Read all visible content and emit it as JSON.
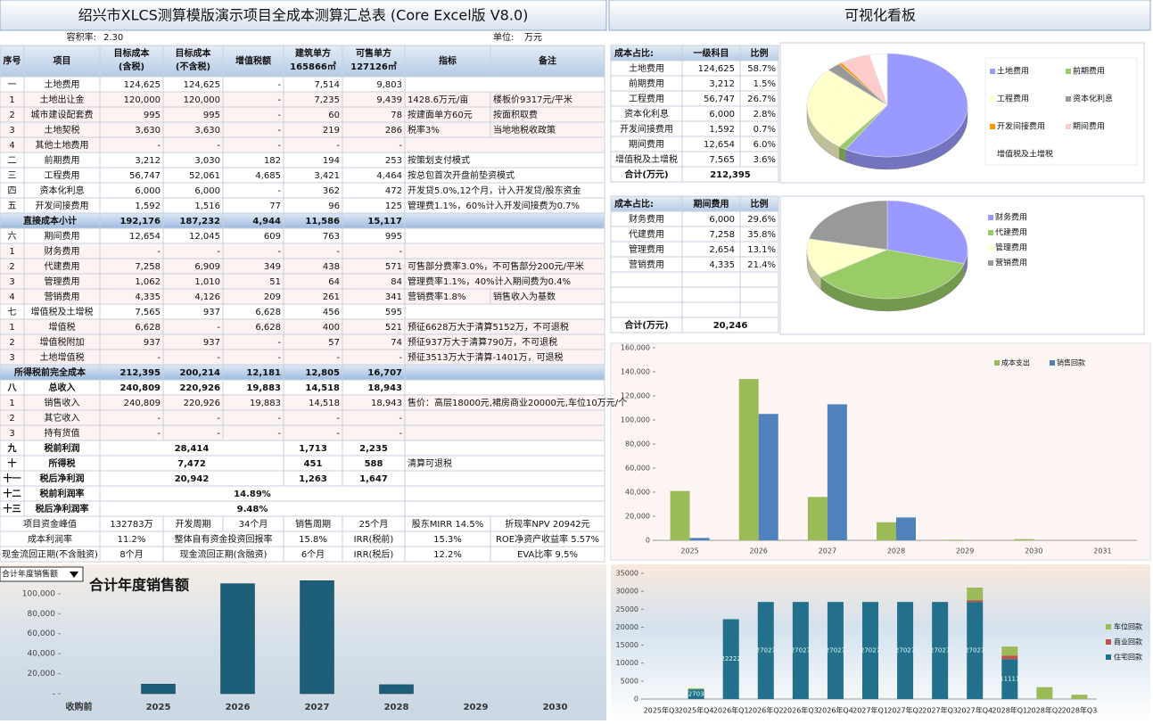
{
  "sheet": {
    "title": "绍兴市XLCS测算模版演示项目全成本测算汇总表 (Core Excel版 V8.0)",
    "plot_ratio_label": "容积率:",
    "plot_ratio": "2.30",
    "unit_label": "单位:",
    "unit": "万元",
    "headers": [
      [
        "序号"
      ],
      [
        "项目"
      ],
      [
        "目标成本",
        "(含税)"
      ],
      [
        "目标成本",
        "(不含税)"
      ],
      [
        "增值税额"
      ],
      [
        "建筑单方",
        "165866㎡"
      ],
      [
        "可售单方",
        "127126㎡"
      ],
      [
        "指标"
      ],
      [
        "备注"
      ]
    ],
    "rows": [
      {
        "no": "一",
        "item": "土地费用",
        "v": [
          "124,625",
          "124,625",
          "-",
          "7,514",
          "9,803"
        ]
      },
      {
        "no": "1",
        "item": "土地出让金",
        "v": [
          "120,000",
          "120,000",
          "-",
          "7,235",
          "9,439"
        ],
        "note": "1428.6万元/亩",
        "remark": "楼板价9317元/平米"
      },
      {
        "no": "2",
        "item": "城市建设配套费",
        "v": [
          "995",
          "995",
          "-",
          "60",
          "78"
        ],
        "note": "按建面单方60元",
        "remark": "按面积取费"
      },
      {
        "no": "3",
        "item": "土地契税",
        "v": [
          "3,630",
          "3,630",
          "-",
          "219",
          "286"
        ],
        "note": "税率3%",
        "remark": "当地地税收政策"
      },
      {
        "no": "4",
        "item": "其他土地费用",
        "v": [
          "-",
          "-",
          "-",
          "-",
          "-"
        ]
      },
      {
        "no": "二",
        "item": "前期费用",
        "v": [
          "3,212",
          "3,030",
          "182",
          "194",
          "253"
        ],
        "note": "按策划支付模式"
      },
      {
        "no": "三",
        "item": "工程费用",
        "v": [
          "56,747",
          "52,061",
          "4,685",
          "3,421",
          "4,464"
        ],
        "note": "按总包首次开盘前垫资模式"
      },
      {
        "no": "四",
        "item": "资本化利息",
        "v": [
          "6,000",
          "6,000",
          "-",
          "362",
          "472"
        ],
        "note": "开发贷5.0%,12个月，计入开发贷/股东资金"
      },
      {
        "no": "五",
        "item": "开发间接费用",
        "v": [
          "1,592",
          "1,516",
          "77",
          "96",
          "125"
        ],
        "note": "管理费1.1%，60%计入开发间接费为0.7%"
      },
      {
        "item": "直接成本小计",
        "v": [
          "192,176",
          "187,232",
          "4,944",
          "11,586",
          "15,117"
        ],
        "highlight": true
      },
      {
        "no": "六",
        "item": "期间费用",
        "v": [
          "12,654",
          "12,045",
          "609",
          "763",
          "995"
        ]
      },
      {
        "no": "1",
        "item": "财务费用",
        "v": [
          "-",
          "-",
          "-",
          "-",
          "-"
        ]
      },
      {
        "no": "2",
        "item": "代建费用",
        "v": [
          "7,258",
          "6,909",
          "349",
          "438",
          "571"
        ],
        "note": "可售部分费率3.0%，不可售部分200元/平米"
      },
      {
        "no": "3",
        "item": "管理费用",
        "v": [
          "1,062",
          "1,010",
          "51",
          "64",
          "84"
        ],
        "note": "管理费率1.1%，40%计入期间费为0.4%"
      },
      {
        "no": "4",
        "item": "营销费用",
        "v": [
          "4,335",
          "4,126",
          "209",
          "261",
          "341"
        ],
        "note": "营销费率1.8%",
        "remark": "销售收入为基数"
      },
      {
        "no": "七",
        "item": "增值税及土增税",
        "v": [
          "7,565",
          "937",
          "6,628",
          "456",
          "595"
        ]
      },
      {
        "no": "1",
        "item": "增值税",
        "v": [
          "6,628",
          "-",
          "6,628",
          "400",
          "521"
        ],
        "note": "预征6628万大于清算5152万，不可退税"
      },
      {
        "no": "2",
        "item": "增值税附加",
        "v": [
          "937",
          "937",
          "-",
          "57",
          "74"
        ],
        "note": "预征937万大于清算790万，不可退税"
      },
      {
        "no": "3",
        "item": "土地增值税",
        "v": [
          "-",
          "-",
          "-",
          "-",
          "-"
        ],
        "note": "预征3513万大于清算-1401万，可退税"
      },
      {
        "item": "所得税前完全成本",
        "v": [
          "212,395",
          "200,214",
          "12,181",
          "12,805",
          "16,707"
        ],
        "highlight": true
      },
      {
        "no": "八",
        "item": "总收入",
        "v": [
          "240,809",
          "220,926",
          "19,883",
          "14,518",
          "18,943"
        ],
        "bold": true
      },
      {
        "no": "1",
        "item": "销售收入",
        "v": [
          "240,809",
          "220,926",
          "19,883",
          "14,518",
          "18,943"
        ],
        "note": "售价：高层18000元,裙房商业20000元,车位10万元/个"
      },
      {
        "no": "2",
        "item": "其它收入",
        "v": [
          "-",
          "-",
          "-",
          "-",
          "-"
        ]
      },
      {
        "no": "3",
        "item": "持有货值",
        "v": [
          "-",
          "-",
          "-",
          "-",
          "-"
        ]
      },
      {
        "no": "九",
        "item": "税前利润",
        "merged": "28,414",
        "v": [
          "1,713",
          "2,235"
        ]
      },
      {
        "no": "十",
        "item": "所得税",
        "merged": "7,472",
        "v": [
          "451",
          "588"
        ],
        "note": "清算可退税"
      },
      {
        "no": "十一",
        "item": "税后净利润",
        "merged": "20,942",
        "v": [
          "1,263",
          "1,647"
        ]
      },
      {
        "no": "十二",
        "item": "税前利润率",
        "merged": "14.89%"
      },
      {
        "no": "十三",
        "item": "税后净利润率",
        "merged": "9.48%"
      }
    ],
    "kpi": [
      [
        "项目资金峰值",
        "132783万",
        "开发周期",
        "34个月",
        "销售周期",
        "25个月",
        "股东MIRR 14.5%",
        "折现率NPV 20942元"
      ],
      [
        "成本利润率",
        "11.2%",
        "整体自有资金投资回报率",
        "15.8%",
        "IRR(税前)",
        "15.3%",
        "ROE净资产收益率 5.57%"
      ],
      [
        "现金流回正期(不含融资)",
        "8个月",
        "现金流回正期(含融资)",
        "6个月",
        "IRR(税后)",
        "12.2%",
        "EVA比率 9.5%"
      ]
    ]
  },
  "dashboard": {
    "title": "可视化看板",
    "table1": {
      "header": [
        "成本占比:",
        "一级科目",
        "比例"
      ],
      "amounts": [
        "124,625",
        "3,212",
        "56,747",
        "6,000",
        "1,592",
        "12,654",
        "7,565"
      ],
      "total_label": "合计(万元)",
      "total": "212,395"
    },
    "table2": {
      "header": [
        "成本占比:",
        "期间费用",
        "比例"
      ],
      "amounts": [
        "6,000",
        "7,258",
        "2,654",
        "4,335"
      ],
      "total_label": "合计(万元)",
      "total": "20,246"
    }
  },
  "chart_data": [
    {
      "type": "bar",
      "title": "合计年度销售额",
      "dropdown": "合计年度销售额",
      "categories": [
        "收购前",
        "2025",
        "2026",
        "2027",
        "2028",
        "2029",
        "2030"
      ],
      "values": [
        0,
        9500,
        110000,
        113000,
        9000,
        0,
        0
      ],
      "color": "#1d5f78",
      "ylim": [
        0,
        115000
      ],
      "yticks": [
        {
          "value": 0,
          "label": "-"
        },
        {
          "value": 20000,
          "label": "20,000"
        },
        {
          "value": 40000,
          "label": "40,000"
        },
        {
          "value": 60000,
          "label": "60,000"
        },
        {
          "value": 80000,
          "label": "80,000"
        },
        {
          "value": 100000,
          "label": "100,000"
        }
      ],
      "grid": false
    },
    {
      "type": "pie",
      "categories": [
        "土地费用",
        "前期费用",
        "工程费用",
        "资本化利息",
        "开发间接费用",
        "期间费用",
        "增值税及土增税"
      ],
      "values": [
        58.7,
        1.5,
        26.7,
        2.8,
        0.7,
        6.0,
        3.6
      ],
      "value_labels": [
        "58.7%",
        "1.5%",
        "26.7%",
        "2.8%",
        "0.7%",
        "6.0%",
        "3.6%"
      ],
      "colors": [
        "#9999ff",
        "#99cc66",
        "#ffffcc",
        "#999999",
        "#ff9900",
        "#ffcccc",
        "#ffffff"
      ]
    },
    {
      "type": "pie",
      "categories": [
        "财务费用",
        "代建费用",
        "管理费用",
        "营销费用"
      ],
      "values": [
        29.6,
        35.8,
        13.1,
        21.4
      ],
      "value_labels": [
        "29.6%",
        "35.8%",
        "13.1%",
        "21.4%"
      ],
      "colors": [
        "#9999ff",
        "#99cc66",
        "#ffffcc",
        "#999999"
      ]
    },
    {
      "type": "grouped_bar",
      "categories": [
        "2025",
        "2026",
        "2027",
        "2028",
        "2029",
        "2030",
        "2031"
      ],
      "series": [
        {
          "name": "成本支出",
          "color": "#9bbb59",
          "values": [
            41000,
            134000,
            36000,
            15000,
            500,
            1000,
            0
          ]
        },
        {
          "name": "销售回款",
          "color": "#4f81bd",
          "values": [
            2000,
            105000,
            113000,
            19000,
            0,
            0,
            0
          ]
        }
      ],
      "ylim": [
        0,
        160000
      ],
      "yticks": [
        0,
        {
          "value": 20000,
          "label": "20,000"
        },
        {
          "value": 40000,
          "label": "40,000"
        },
        {
          "value": 60000,
          "label": "60,000"
        },
        {
          "value": 80000,
          "label": "80,000"
        },
        {
          "value": 100000,
          "label": "100,000"
        },
        {
          "value": 120000,
          "label": "120,000"
        },
        {
          "value": 140000,
          "label": "140,000"
        },
        {
          "value": 160000,
          "label": "160,000"
        }
      ],
      "legend": "top",
      "grid": false
    },
    {
      "type": "stacked_bar",
      "categories": [
        "2025年Q3",
        "2025年Q4",
        "2026年Q1",
        "2026年Q2",
        "2026年Q3",
        "2026年Q4",
        "2027年Q1",
        "2027年Q2",
        "2027年Q3",
        "2027年Q4",
        "2028年Q1",
        "2028年Q2",
        "2028年Q3"
      ],
      "series": [
        {
          "name": "住宅回款",
          "color": "#23708c",
          "values": [
            0,
            2703,
            22222,
            27027,
            27027,
            27027,
            27027,
            27027,
            27027,
            27027,
            11111,
            0,
            0
          ]
        },
        {
          "name": "商业回款",
          "color": "#c0504d",
          "values": [
            0,
            0,
            0,
            0,
            0,
            0,
            0,
            0,
            0,
            500,
            1000,
            0,
            0
          ]
        },
        {
          "name": "车位回款",
          "color": "#9bbb59",
          "values": [
            0,
            300,
            0,
            0,
            0,
            0,
            0,
            0,
            0,
            3500,
            2500,
            3300,
            1200
          ]
        }
      ],
      "ylim": [
        0,
        35000
      ],
      "yticks": [
        0,
        5000,
        10000,
        15000,
        20000,
        25000,
        30000,
        35000
      ],
      "legend": "right",
      "grid": false
    }
  ]
}
